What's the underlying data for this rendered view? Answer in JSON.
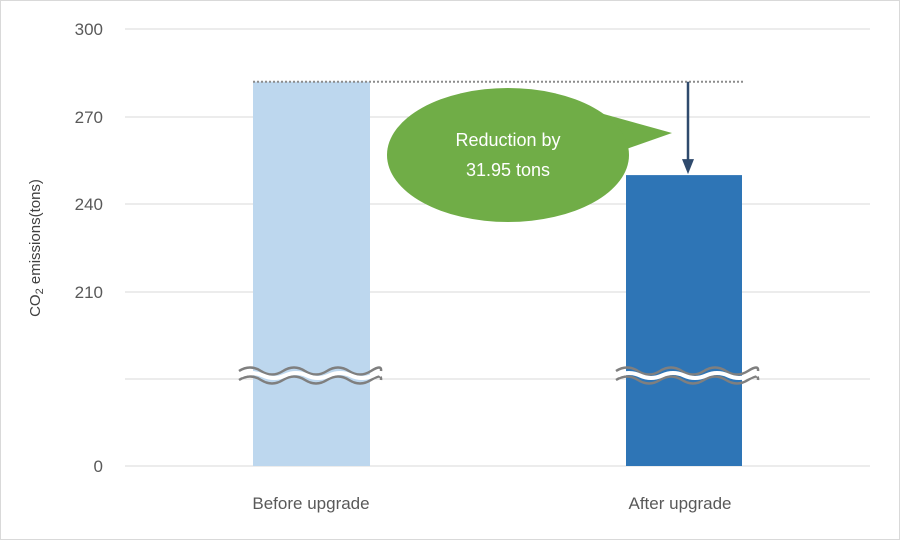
{
  "chart_data": {
    "type": "bar",
    "categories": [
      "Before upgrade",
      "After upgrade"
    ],
    "values": [
      281.95,
      250.0
    ],
    "ylabel": {
      "main": "CO",
      "sub": "2",
      "rest": " emissions(tons)"
    },
    "yticks": [
      "300",
      "270",
      "240",
      "210",
      "0"
    ],
    "ylim": [
      0,
      300
    ],
    "axis_break": true,
    "colors": [
      "#bdd7ee",
      "#2e75b6"
    ],
    "annotation": {
      "line1": "Reduction by",
      "line2": "31.95 tons",
      "color": "#70ad47"
    },
    "grid": true
  }
}
